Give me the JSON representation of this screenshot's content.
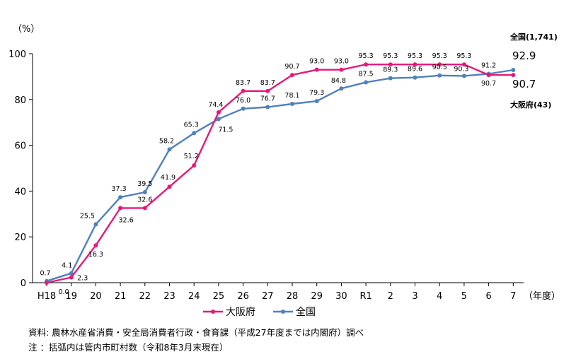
{
  "chart_data": {
    "type": "line",
    "ylabel": "（%）",
    "xunit": "（年度）",
    "ylim": [
      0,
      100
    ],
    "yticks": [
      0,
      20,
      40,
      60,
      80,
      100
    ],
    "grid": false,
    "legend_position": "bottom",
    "categories": [
      "H18",
      "19",
      "20",
      "21",
      "22",
      "23",
      "24",
      "25",
      "26",
      "27",
      "28",
      "29",
      "30",
      "R1",
      "2",
      "3",
      "4",
      "5",
      "6",
      "7"
    ],
    "series": [
      {
        "name": "大阪府",
        "color": "#e6197a",
        "values": [
          0.0,
          2.3,
          16.3,
          32.6,
          32.6,
          41.9,
          51.2,
          74.4,
          83.7,
          83.7,
          90.7,
          93.0,
          93.0,
          95.3,
          95.3,
          95.3,
          95.3,
          95.3,
          90.7,
          90.7
        ],
        "labels": [
          "0.0",
          "2.3",
          "16.3",
          "32.6",
          "32.6",
          "41.9",
          "51.2",
          "74.4",
          "83.7",
          "83.7",
          "90.7",
          "93.0",
          "93.0",
          "95.3",
          "95.3",
          "95.3",
          "95.3",
          "95.3",
          "90.7",
          ""
        ],
        "end_value": "90.7",
        "end_label": "大阪府(43)"
      },
      {
        "name": "全国",
        "color": "#4f81bd",
        "values": [
          0.7,
          4.1,
          25.5,
          37.3,
          39.5,
          58.2,
          65.3,
          71.5,
          76.0,
          76.7,
          78.1,
          79.3,
          84.8,
          87.5,
          89.3,
          89.6,
          90.5,
          90.3,
          91.2,
          92.9
        ],
        "labels": [
          "0.7",
          "4.1",
          "25.5",
          "37.3",
          "39.5",
          "58.2",
          "65.3",
          "71.5",
          "76.0",
          "76.7",
          "78.1",
          "79.3",
          "84.8",
          "87.5",
          "89.3",
          "89.6",
          "90.5",
          "90.3",
          "91.2",
          ""
        ],
        "end_value": "92.9",
        "end_label": "全国(1,741)"
      }
    ]
  },
  "notes": {
    "source": "資料: 農林水産省消費・安全局消費者行政・食育課（平成27年度までは内閣府）調べ",
    "note": " 注 ：括弧内は管内市町村数（令和8年3月末現在）"
  }
}
